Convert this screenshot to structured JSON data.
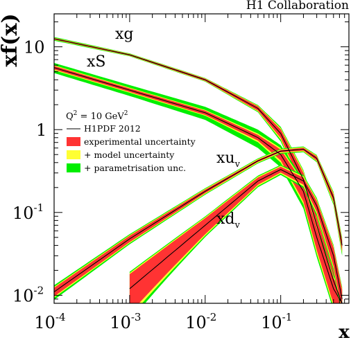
{
  "chart_data": {
    "type": "line",
    "collaboration": "H1 Collaboration",
    "ylabel": "xf(x)",
    "xlabel": "x",
    "xscale": "log",
    "yscale": "log",
    "xlim": [
      0.0001,
      0.8
    ],
    "ylim": [
      0.008,
      25
    ],
    "x_ticks": [
      {
        "value": 0.0001,
        "base": "10",
        "exp": "-4"
      },
      {
        "value": 0.001,
        "base": "10",
        "exp": "-3"
      },
      {
        "value": 0.01,
        "base": "10",
        "exp": "-2"
      },
      {
        "value": 0.1,
        "base": "10",
        "exp": "-1"
      }
    ],
    "y_ticks": [
      {
        "value": 0.01,
        "base": "10",
        "exp": "-2"
      },
      {
        "value": 0.1,
        "base": "10",
        "exp": "-1"
      },
      {
        "value": 1,
        "base": "1",
        "exp": ""
      },
      {
        "value": 10,
        "base": "10",
        "exp": ""
      }
    ],
    "legend": {
      "q2_base": "Q",
      "q2_sup": "2",
      "q2_rest": " = 10 GeV",
      "q2_sup2": "2",
      "entries": [
        {
          "kind": "line",
          "color": "#000000",
          "label": "H1PDF 2012"
        },
        {
          "kind": "box",
          "color": "#ff3333",
          "label": "experimental uncertainty"
        },
        {
          "kind": "box",
          "color": "#ffff33",
          "label": "+ model uncertainty"
        },
        {
          "kind": "box",
          "color": "#00ee00",
          "label": "+ parametrisation unc."
        }
      ]
    },
    "colors": {
      "central": "#000000",
      "exp": "#ff3333",
      "model": "#ffff33",
      "param": "#00ee00",
      "outline": "#cc3300"
    },
    "series": [
      {
        "name": "xg",
        "label_main": "xg",
        "label_sub": "",
        "x": [
          0.0001,
          0.001,
          0.01,
          0.05,
          0.1,
          0.2,
          0.3,
          0.5,
          0.65
        ],
        "y": [
          12.5,
          8.0,
          4.0,
          1.8,
          0.9,
          0.25,
          0.07,
          0.015,
          0.008
        ],
        "exp": [
          0.02,
          0.02,
          0.03,
          0.06,
          0.12,
          0.2,
          0.25,
          0.3,
          0.3
        ],
        "model": [
          0.03,
          0.03,
          0.04,
          0.08,
          0.16,
          0.26,
          0.3,
          0.35,
          0.35
        ],
        "param": [
          0.05,
          0.04,
          0.05,
          0.1,
          0.2,
          0.3,
          0.36,
          0.4,
          0.4
        ]
      },
      {
        "name": "xS",
        "label_main": "xS",
        "label_sub": "",
        "x": [
          0.0001,
          0.001,
          0.01,
          0.05,
          0.1,
          0.2,
          0.3,
          0.5,
          0.65
        ],
        "y": [
          5.6,
          3.0,
          1.6,
          0.8,
          0.5,
          0.18,
          0.05,
          0.012,
          0.008
        ],
        "exp": [
          0.05,
          0.05,
          0.06,
          0.08,
          0.15,
          0.25,
          0.3,
          0.35,
          0.35
        ],
        "model": [
          0.07,
          0.07,
          0.08,
          0.12,
          0.2,
          0.3,
          0.36,
          0.4,
          0.4
        ],
        "param": [
          0.14,
          0.15,
          0.18,
          0.25,
          0.3,
          0.38,
          0.42,
          0.45,
          0.45
        ]
      },
      {
        "name": "xuv",
        "label_main": "xu",
        "label_sub": "v",
        "x": [
          0.0001,
          0.001,
          0.01,
          0.05,
          0.1,
          0.2,
          0.3,
          0.5,
          0.65
        ],
        "y": [
          0.011,
          0.048,
          0.18,
          0.42,
          0.55,
          0.58,
          0.45,
          0.15,
          0.04
        ],
        "exp": [
          0.12,
          0.09,
          0.05,
          0.03,
          0.03,
          0.04,
          0.06,
          0.1,
          0.15
        ],
        "model": [
          0.15,
          0.11,
          0.07,
          0.05,
          0.05,
          0.06,
          0.08,
          0.14,
          0.2
        ],
        "param": [
          0.2,
          0.14,
          0.09,
          0.07,
          0.07,
          0.08,
          0.1,
          0.18,
          0.25
        ]
      },
      {
        "name": "xdv",
        "label_main": "xd",
        "label_sub": "v",
        "x": [
          0.001,
          0.01,
          0.05,
          0.1,
          0.2,
          0.3,
          0.5,
          0.65
        ],
        "y": [
          0.012,
          0.07,
          0.24,
          0.33,
          0.24,
          0.12,
          0.03,
          0.009
        ],
        "exp": [
          0.5,
          0.22,
          0.1,
          0.08,
          0.1,
          0.15,
          0.25,
          0.3
        ],
        "model": [
          0.55,
          0.25,
          0.13,
          0.11,
          0.14,
          0.2,
          0.3,
          0.35
        ],
        "param": [
          0.6,
          0.28,
          0.16,
          0.14,
          0.18,
          0.25,
          0.35,
          0.4
        ]
      }
    ]
  }
}
